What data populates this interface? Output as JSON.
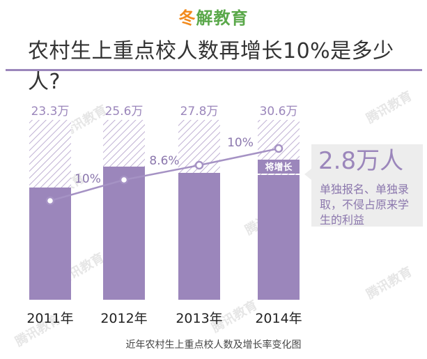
{
  "brand": {
    "logo_mark": "冬",
    "logo_rest": "解教育"
  },
  "title": "农村生上重点校人数再增长10%是多少人?",
  "watermark": "腾讯教育",
  "colors": {
    "bar": "#9b86bb",
    "hatch": "#bfb0d3",
    "line": "#a592c4",
    "rule": "#9b86bb",
    "callout_bg": "#ededed"
  },
  "chart_data": {
    "type": "bar",
    "categories": [
      "2011年",
      "2012年",
      "2013年",
      "2014年"
    ],
    "series": [
      {
        "values": [
          23.3,
          25.6,
          27.8,
          30.6
        ],
        "labels": [
          "23.3万",
          "25.6万",
          "27.8万",
          "30.6万"
        ]
      }
    ],
    "growth_rate": {
      "values": [
        null,
        10,
        8.6,
        10
      ],
      "labels": [
        "",
        "10%",
        "8.6%",
        "10%"
      ]
    },
    "highlight": {
      "category": "2014年",
      "label": "将增长"
    },
    "annotation": {
      "big": "2.8万人",
      "text": "单独报名、单独录取，不侵占原来学生的利益"
    },
    "caption": "近年农村生上重点校人数及增长率变化图",
    "ylim": [
      0,
      31
    ],
    "grid": false
  }
}
